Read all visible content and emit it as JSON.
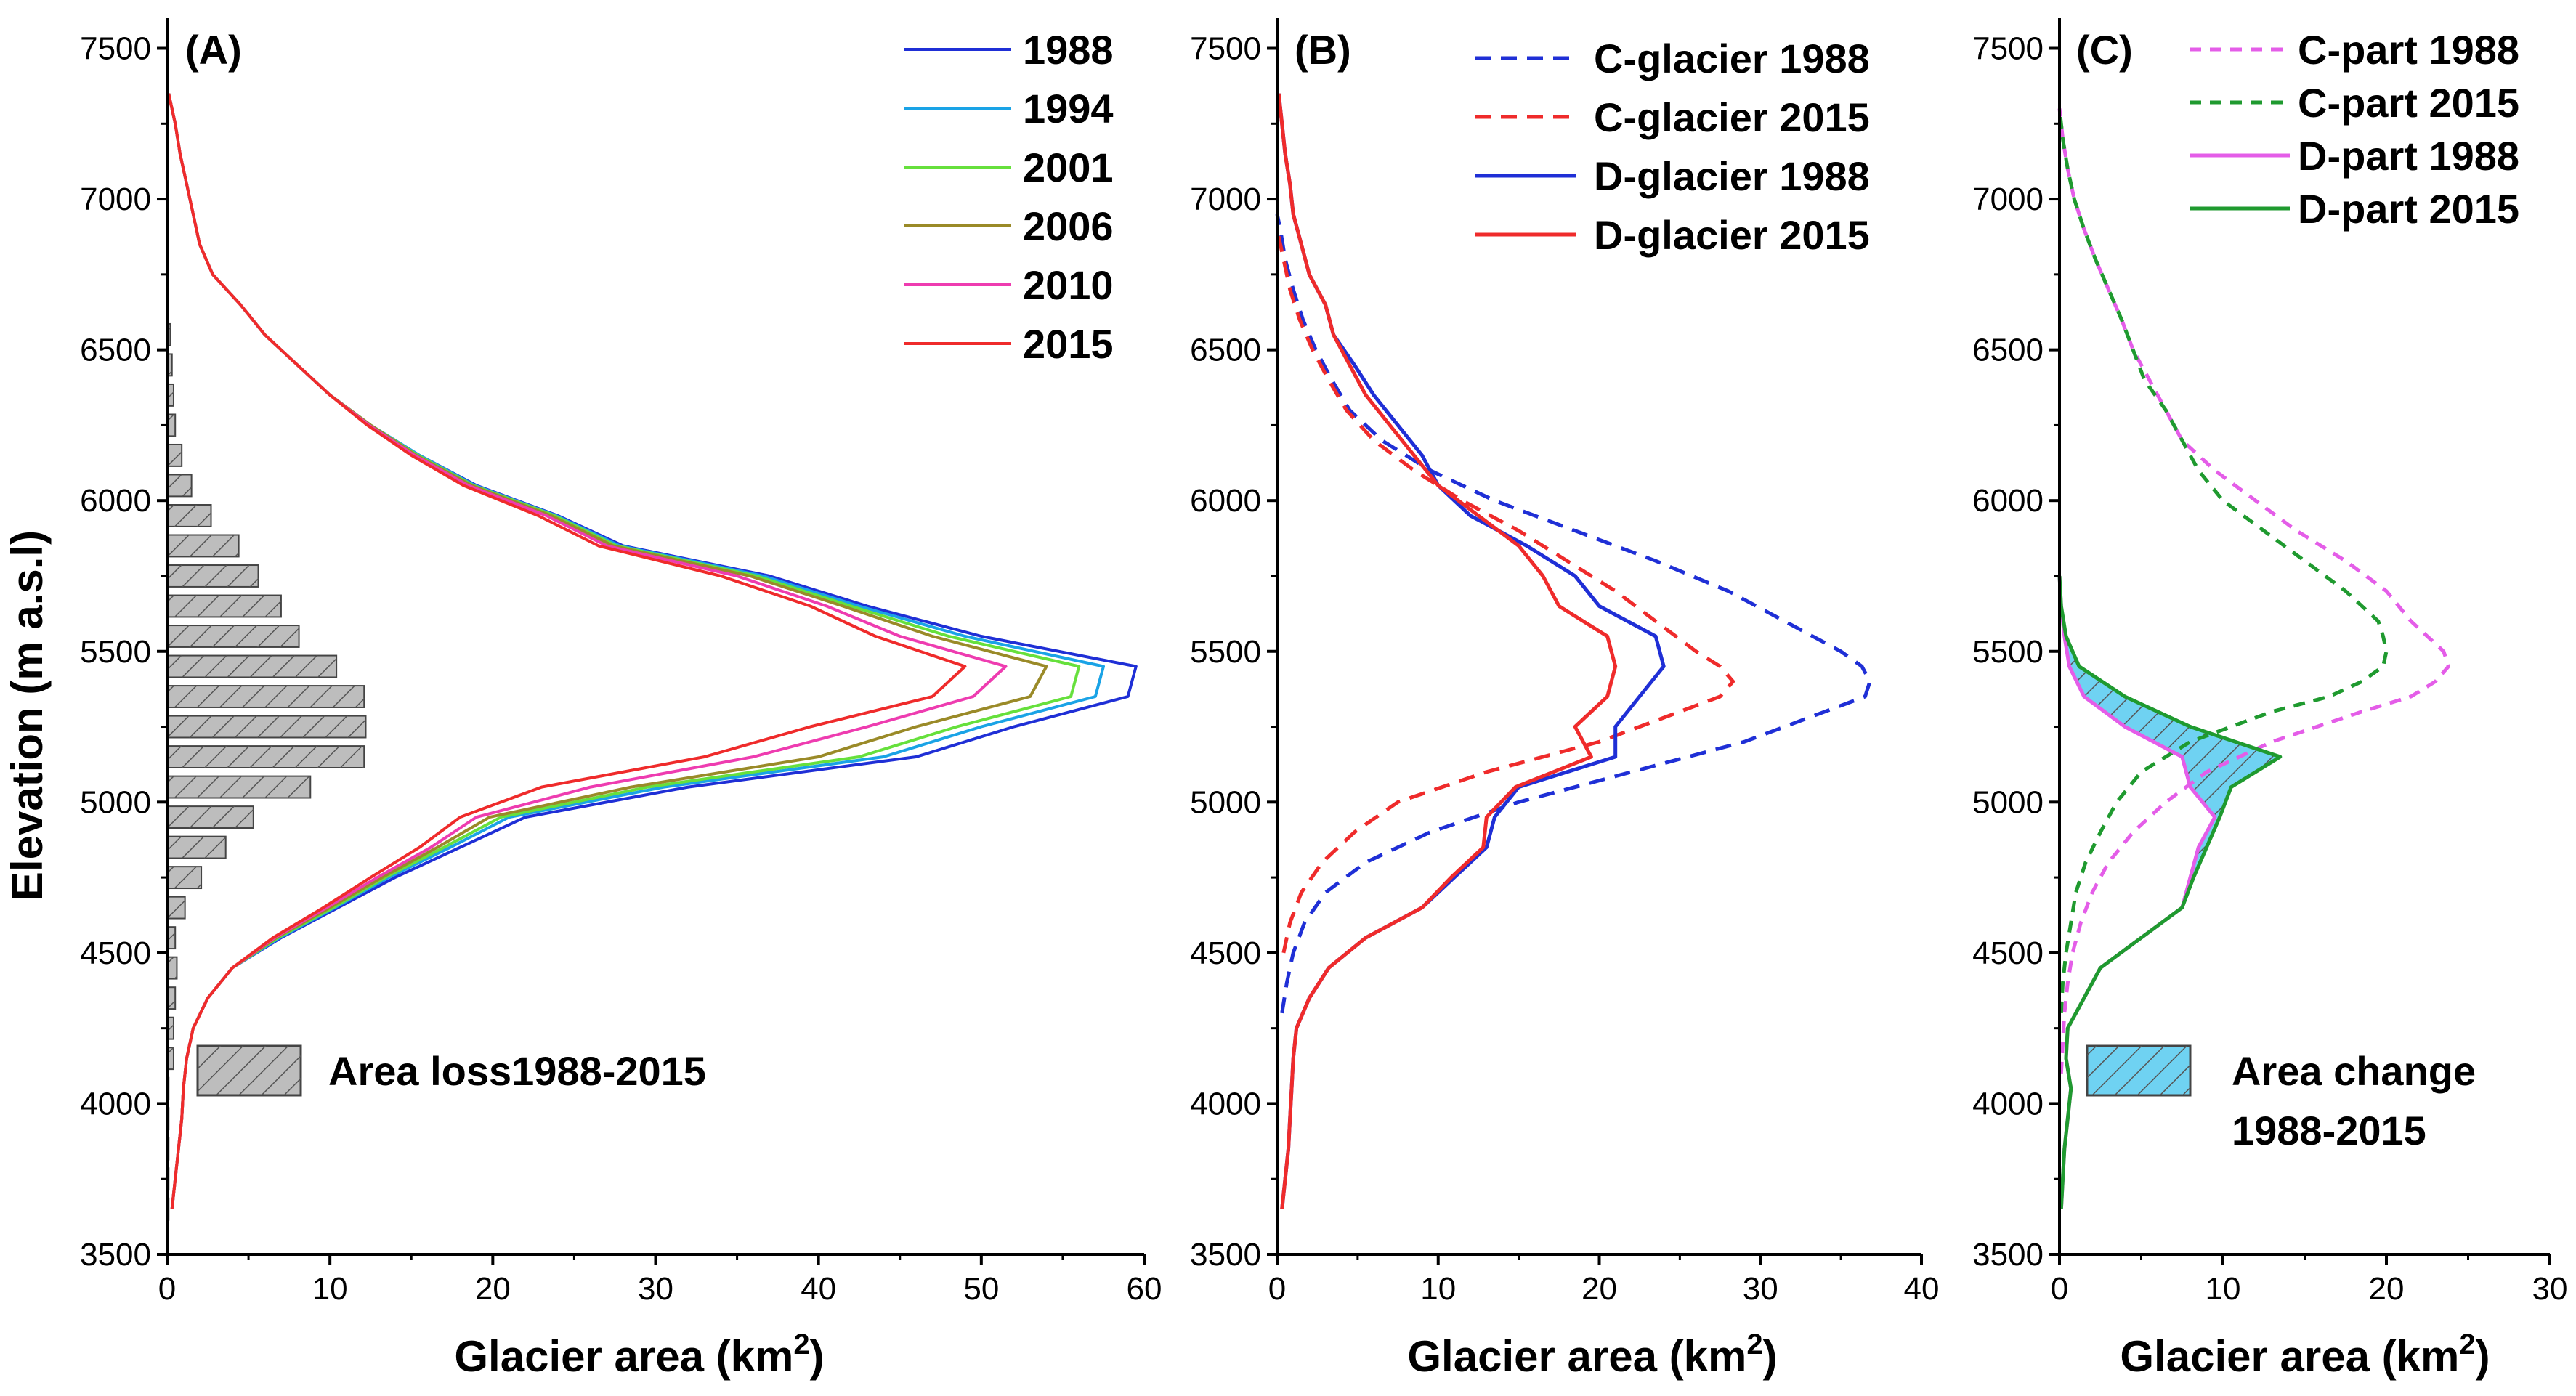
{
  "colors": {
    "1988": "#1f2fd6",
    "1994": "#1aa3e6",
    "2001": "#66e03c",
    "2006": "#9a8a28",
    "2010": "#ee3cb0",
    "2015": "#ef2b2b",
    "c_part_1988": "#e45de8",
    "c_part_2015": "#1f9a2f",
    "hatch_fill_a": "#bdbdbd",
    "hatch_fill_c": "#6fd2f2"
  },
  "chart_data": [
    {
      "type": "line",
      "panel": "(A)",
      "xlabel": "Glacier area (km²)",
      "ylabel": "Elevation (m a.s.l)",
      "xlim": [
        0,
        60
      ],
      "ylim": [
        3500,
        7600
      ],
      "xticks": [
        0,
        10,
        20,
        30,
        40,
        50,
        60
      ],
      "yticks": [
        3500,
        4000,
        4500,
        5000,
        5500,
        6000,
        6500,
        7000,
        7500
      ],
      "y": [
        3650,
        3750,
        3850,
        3950,
        4050,
        4150,
        4250,
        4350,
        4450,
        4550,
        4650,
        4750,
        4850,
        4950,
        5050,
        5150,
        5250,
        5350,
        5450,
        5550,
        5650,
        5750,
        5850,
        5950,
        6050,
        6150,
        6250,
        6350,
        6450,
        6550,
        6650,
        6750,
        6850,
        6950,
        7050,
        7150,
        7250,
        7350
      ],
      "series": [
        {
          "name": "1988",
          "values": [
            0.3,
            0.5,
            0.7,
            0.9,
            1.0,
            1.2,
            1.6,
            2.5,
            4.0,
            7.0,
            10.5,
            14.0,
            18.0,
            22.0,
            32.0,
            46.0,
            52.0,
            59.0,
            59.5,
            50.0,
            43.0,
            37.0,
            28.0,
            24.0,
            19.0,
            15.5,
            12.5,
            10.0,
            8.0,
            6.0,
            4.5,
            2.8,
            2.0,
            1.6,
            1.2,
            0.8,
            0.5,
            0.1
          ]
        },
        {
          "name": "1994",
          "values": [
            0.3,
            0.5,
            0.7,
            0.9,
            1.0,
            1.2,
            1.6,
            2.5,
            4.0,
            6.9,
            10.3,
            13.6,
            17.4,
            21.0,
            30.5,
            44.0,
            50.0,
            57.0,
            57.5,
            49.0,
            42.5,
            36.6,
            27.8,
            23.9,
            18.9,
            15.5,
            12.5,
            10.0,
            8.0,
            6.0,
            4.5,
            2.8,
            2.0,
            1.6,
            1.2,
            0.8,
            0.5,
            0.1
          ]
        },
        {
          "name": "2001",
          "values": [
            0.3,
            0.5,
            0.7,
            0.9,
            1.0,
            1.2,
            1.6,
            2.5,
            4.0,
            6.8,
            10.2,
            13.4,
            17.0,
            20.5,
            29.5,
            42.5,
            48.5,
            55.5,
            56.0,
            48.0,
            42.0,
            36.2,
            27.6,
            23.8,
            18.8,
            15.4,
            12.5,
            10.0,
            8.0,
            6.0,
            4.5,
            2.8,
            2.0,
            1.6,
            1.2,
            0.8,
            0.5,
            0.1
          ]
        },
        {
          "name": "2006",
          "values": [
            0.3,
            0.5,
            0.7,
            0.9,
            1.0,
            1.2,
            1.6,
            2.5,
            4.0,
            6.7,
            10.0,
            13.2,
            16.6,
            19.8,
            28.5,
            40.0,
            46.0,
            53.0,
            54.0,
            47.0,
            41.5,
            35.8,
            27.4,
            23.6,
            18.7,
            15.3,
            12.5,
            10.0,
            8.0,
            6.0,
            4.5,
            2.8,
            2.0,
            1.6,
            1.2,
            0.8,
            0.5,
            0.1
          ]
        },
        {
          "name": "2010",
          "values": [
            0.3,
            0.5,
            0.7,
            0.9,
            1.0,
            1.2,
            1.6,
            2.5,
            4.0,
            6.6,
            9.8,
            12.9,
            16.2,
            19.0,
            26.0,
            36.0,
            43.0,
            49.5,
            51.5,
            45.0,
            40.5,
            35.0,
            27.0,
            23.3,
            18.5,
            15.2,
            12.4,
            10.0,
            8.0,
            6.0,
            4.5,
            2.8,
            2.0,
            1.6,
            1.2,
            0.8,
            0.5,
            0.1
          ]
        },
        {
          "name": "2015",
          "values": [
            0.3,
            0.5,
            0.7,
            0.9,
            1.0,
            1.2,
            1.6,
            2.5,
            4.0,
            6.5,
            9.6,
            12.5,
            15.5,
            18.0,
            23.0,
            33.0,
            39.5,
            47.0,
            49.0,
            43.5,
            39.5,
            34.0,
            26.5,
            22.8,
            18.2,
            15.0,
            12.3,
            10.0,
            8.0,
            6.0,
            4.5,
            2.8,
            2.0,
            1.6,
            1.2,
            0.8,
            0.5,
            0.1
          ]
        }
      ],
      "bars": {
        "name": "Area loss1988-2015",
        "y": [
          3650,
          3750,
          3850,
          3950,
          4050,
          4150,
          4250,
          4350,
          4450,
          4550,
          4650,
          4750,
          4850,
          4950,
          5050,
          5150,
          5250,
          5350,
          5450,
          5550,
          5650,
          5750,
          5850,
          5950,
          6050,
          6150,
          6250,
          6350,
          6450,
          6550
        ],
        "values": [
          0.1,
          0.1,
          0.1,
          0.1,
          0.1,
          0.4,
          0.4,
          0.5,
          0.6,
          0.5,
          1.1,
          2.1,
          3.6,
          5.3,
          8.8,
          12.1,
          12.2,
          12.1,
          10.4,
          8.1,
          7.0,
          5.6,
          4.4,
          2.7,
          1.5,
          0.9,
          0.5,
          0.4,
          0.3,
          0.2
        ]
      },
      "legend": [
        "1988",
        "1994",
        "2001",
        "2006",
        "2010",
        "2015"
      ]
    },
    {
      "type": "line",
      "panel": "(B)",
      "xlabel": "Glacier area (km²)",
      "xlim": [
        0,
        40
      ],
      "ylim": [
        3500,
        7600
      ],
      "xticks": [
        0,
        10,
        20,
        30,
        40
      ],
      "yticks": [
        3500,
        4000,
        4500,
        5000,
        5500,
        6000,
        6500,
        7000,
        7500
      ],
      "series": [
        {
          "name": "C-glacier 1988",
          "style": "dashed",
          "color": "1988",
          "y": [
            4300,
            4400,
            4500,
            4600,
            4700,
            4800,
            4900,
            5000,
            5100,
            5200,
            5300,
            5350,
            5400,
            5450,
            5500,
            5600,
            5700,
            5800,
            5900,
            6000,
            6100,
            6200,
            6300,
            6400,
            6500,
            6600,
            6700,
            6800,
            6900,
            6950
          ],
          "x": [
            0.3,
            0.6,
            1.0,
            1.7,
            3.0,
            5.5,
            9.5,
            15,
            22,
            29,
            34,
            36.5,
            36.8,
            36.3,
            35,
            31.5,
            28,
            23.5,
            18.5,
            13.5,
            9.5,
            6.5,
            4.5,
            3.4,
            2.4,
            1.6,
            1.0,
            0.5,
            0.2,
            0.0
          ]
        },
        {
          "name": "C-glacier 2015",
          "style": "dashed",
          "color": "2015",
          "y": [
            4500,
            4600,
            4700,
            4800,
            4900,
            5000,
            5100,
            5200,
            5300,
            5350,
            5400,
            5450,
            5500,
            5600,
            5700,
            5800,
            5900,
            6000,
            6100,
            6200,
            6300,
            6400,
            6500,
            6600,
            6700,
            6800,
            6900
          ],
          "x": [
            0.4,
            0.8,
            1.5,
            2.8,
            4.8,
            7.5,
            13,
            20,
            25,
            27.5,
            28.3,
            27.5,
            26,
            23.5,
            21,
            18,
            15,
            11.5,
            8.5,
            6.0,
            4.3,
            3.2,
            2.2,
            1.4,
            0.8,
            0.4,
            0.0
          ]
        },
        {
          "name": "D-glacier 1988",
          "style": "solid",
          "color": "1988",
          "y": [
            3650,
            3750,
            3850,
            3950,
            4050,
            4150,
            4250,
            4350,
            4450,
            4550,
            4650,
            4750,
            4850,
            4950,
            5050,
            5150,
            5250,
            5350,
            5450,
            5550,
            5650,
            5750,
            5850,
            5950,
            6050,
            6150,
            6250,
            6350,
            6450,
            6550,
            6650,
            6750,
            6850,
            6950,
            7050,
            7150,
            7250,
            7350
          ],
          "x": [
            0.3,
            0.5,
            0.7,
            0.8,
            0.9,
            1.0,
            1.2,
            2.0,
            3.2,
            5.5,
            9.0,
            11.0,
            13.0,
            13.5,
            15.0,
            21.0,
            21.0,
            22.5,
            24.0,
            23.5,
            20.0,
            18.5,
            15.5,
            12.0,
            10.0,
            9.0,
            7.5,
            6.0,
            4.8,
            3.5,
            3.0,
            2.0,
            1.5,
            1.0,
            0.8,
            0.5,
            0.3,
            0.1
          ]
        },
        {
          "name": "D-glacier 2015",
          "style": "solid",
          "color": "2015",
          "y": [
            3650,
            3750,
            3850,
            3950,
            4050,
            4150,
            4250,
            4350,
            4450,
            4550,
            4650,
            4750,
            4850,
            4950,
            5050,
            5150,
            5250,
            5350,
            5450,
            5550,
            5650,
            5750,
            5850,
            5950,
            6050,
            6150,
            6250,
            6350,
            6450,
            6550,
            6650,
            6750,
            6850,
            6950,
            7050,
            7150,
            7250,
            7350
          ],
          "x": [
            0.3,
            0.5,
            0.7,
            0.8,
            0.9,
            1.0,
            1.2,
            2.0,
            3.2,
            5.5,
            9.0,
            10.8,
            12.8,
            13.0,
            14.8,
            19.5,
            18.5,
            20.5,
            21.0,
            20.5,
            17.5,
            16.5,
            15.0,
            12.5,
            10.0,
            8.5,
            7.0,
            5.5,
            4.5,
            3.5,
            3.0,
            2.0,
            1.5,
            1.0,
            0.8,
            0.5,
            0.3,
            0.1
          ]
        }
      ],
      "legend": [
        "C-glacier 1988",
        "C-glacier 2015",
        "D-glacier 1988",
        "D-glacier 2015"
      ]
    },
    {
      "type": "line",
      "panel": "(C)",
      "xlabel": "Glacier area (km²)",
      "xlim": [
        0,
        30
      ],
      "ylim": [
        3500,
        7600
      ],
      "xticks": [
        0,
        10,
        20,
        30
      ],
      "yticks": [
        3500,
        4000,
        4500,
        5000,
        5500,
        6000,
        6500,
        7000,
        7500
      ],
      "series": [
        {
          "name": "C-part 1988",
          "style": "dashed",
          "color": "c_part_1988",
          "y": [
            4100,
            4200,
            4300,
            4400,
            4500,
            4600,
            4700,
            4800,
            4900,
            5000,
            5100,
            5200,
            5300,
            5350,
            5400,
            5450,
            5500,
            5550,
            5600,
            5700,
            5800,
            5900,
            6000,
            6100,
            6200,
            6300,
            6400,
            6500,
            6600,
            6700,
            6800,
            6900,
            7000,
            7100,
            7200,
            7300
          ],
          "x": [
            0.1,
            0.2,
            0.3,
            0.5,
            0.8,
            1.3,
            2.0,
            3.0,
            4.5,
            6.5,
            9.0,
            13.0,
            18.5,
            21.5,
            23.0,
            23.8,
            23.5,
            22.5,
            21.5,
            20.0,
            17.5,
            14.5,
            12.0,
            9.5,
            7.5,
            6.5,
            5.5,
            4.5,
            3.8,
            3.0,
            2.2,
            1.5,
            0.9,
            0.5,
            0.2,
            0.0
          ]
        },
        {
          "name": "C-part 2015",
          "style": "dashed",
          "color": "c_part_2015",
          "y": [
            4300,
            4400,
            4500,
            4600,
            4700,
            4800,
            4900,
            5000,
            5100,
            5200,
            5300,
            5350,
            5400,
            5450,
            5500,
            5550,
            5600,
            5700,
            5800,
            5900,
            6000,
            6100,
            6200,
            6300,
            6400,
            6500,
            6600,
            6700,
            6800,
            6900,
            7000,
            7100,
            7200,
            7300
          ],
          "x": [
            0.1,
            0.2,
            0.4,
            0.7,
            1.0,
            1.6,
            2.5,
            3.5,
            5.0,
            8.0,
            13.0,
            16.5,
            18.5,
            19.8,
            20.0,
            19.8,
            19.5,
            17.5,
            15.0,
            12.5,
            10.0,
            8.5,
            7.5,
            6.5,
            5.2,
            4.5,
            3.8,
            3.0,
            2.2,
            1.5,
            0.9,
            0.5,
            0.2,
            0.0
          ]
        },
        {
          "name": "D-part 1988",
          "style": "solid",
          "color": "c_part_1988",
          "y": [
            3650,
            3750,
            3850,
            3950,
            4050,
            4150,
            4250,
            4350,
            4450,
            4550,
            4650,
            4750,
            4850,
            4950,
            5050,
            5150,
            5250,
            5350,
            5450,
            5550,
            5650,
            5750
          ],
          "x": [
            0.1,
            0.2,
            0.3,
            0.5,
            0.7,
            0.4,
            0.5,
            1.5,
            2.5,
            5.0,
            7.5,
            8.0,
            8.5,
            9.5,
            8.0,
            7.5,
            4.0,
            1.5,
            0.6,
            0.3,
            0.1,
            0.0
          ]
        },
        {
          "name": "D-part 2015",
          "style": "solid",
          "color": "c_part_2015",
          "y": [
            3650,
            3750,
            3850,
            3950,
            4050,
            4150,
            4250,
            4350,
            4450,
            4550,
            4650,
            4750,
            4850,
            4950,
            5050,
            5150,
            5250,
            5350,
            5450,
            5550,
            5650,
            5750
          ],
          "x": [
            0.1,
            0.2,
            0.3,
            0.5,
            0.7,
            0.4,
            0.5,
            1.5,
            2.5,
            5.0,
            7.5,
            8.2,
            9.0,
            9.8,
            10.5,
            13.5,
            8.0,
            4.0,
            1.2,
            0.4,
            0.1,
            0.0
          ]
        }
      ],
      "fill_between": {
        "name": "Area change 1988-2015",
        "between": [
          "D-part 1988",
          "D-part 2015"
        ]
      },
      "legend": [
        "C-part 1988",
        "C-part 2015",
        "D-part 1988",
        "D-part 2015"
      ]
    }
  ],
  "labels": {
    "panel_a": "(A)",
    "panel_b": "(B)",
    "panel_c": "(C)",
    "ylabel": "Elevation (m a.s.l)",
    "xlabel_main": "Glacier area (km",
    "xlabel_sup": "2",
    "xlabel_close": ")",
    "area_loss": "Area loss1988-2015",
    "area_change_1": "Area change",
    "area_change_2": "1988-2015",
    "leg_a": [
      "1988",
      "1994",
      "2001",
      "2006",
      "2010",
      "2015"
    ],
    "leg_b": [
      "C-glacier 1988",
      "C-glacier 2015",
      "D-glacier 1988",
      "D-glacier 2015"
    ],
    "leg_c": [
      "C-part 1988",
      "C-part 2015",
      "D-part 1988",
      "D-part 2015"
    ]
  }
}
